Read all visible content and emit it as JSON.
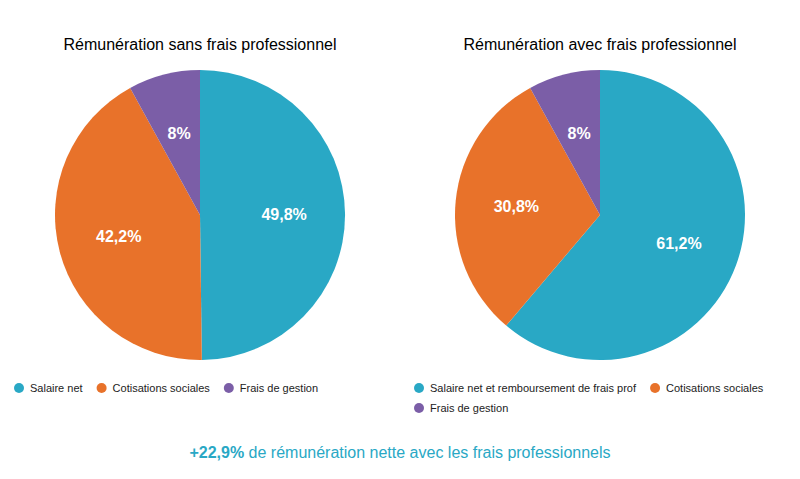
{
  "chart_data": [
    {
      "type": "pie",
      "title": "Rémunération sans frais professionnel",
      "categories": [
        "Salaire net",
        "Cotisations sociales",
        "Frais de gestion"
      ],
      "values": [
        49.8,
        42.2,
        8.0
      ],
      "value_labels": [
        "49,8%",
        "42,2%",
        "8%"
      ],
      "colors": [
        "#29a8c5",
        "#e8722a",
        "#7b5ea7"
      ],
      "data_labels": true,
      "legend": "bottom"
    },
    {
      "type": "pie",
      "title": "Rémunération avec frais professionnel",
      "categories": [
        "Salaire net et remboursement de frais prof",
        "Cotisations sociales",
        "Frais de gestion"
      ],
      "values": [
        61.2,
        30.8,
        8.0
      ],
      "value_labels": [
        "61,2%",
        "30,8%",
        "8%"
      ],
      "colors": [
        "#29a8c5",
        "#e8722a",
        "#7b5ea7"
      ],
      "data_labels": true,
      "legend": "bottom",
      "annotations": [
        {
          "text": "+22,9%",
          "color": "#29a8c5"
        },
        {
          "text": " de rémunération nette avec les frais professionnels",
          "color": "#29a8c5"
        }
      ]
    }
  ]
}
